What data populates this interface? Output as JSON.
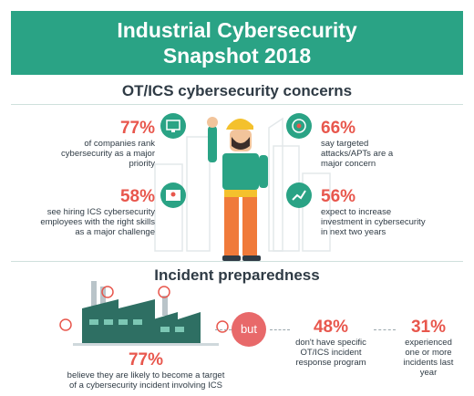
{
  "header": {
    "title_line1": "Industrial Cybersecurity",
    "title_line2": "Snapshot 2018"
  },
  "concerns": {
    "title": "OT/ICS cybersecurity concerns",
    "items": [
      {
        "pct": "77%",
        "text": [
          "of companies rank",
          "cybersecurity as a major",
          "priority"
        ],
        "icon": "monitor-shield-icon"
      },
      {
        "pct": "58%",
        "text": [
          "see hiring ICS cybersecurity",
          "employees with the right skills",
          "as a major challenge"
        ],
        "icon": "person-screen-icon"
      },
      {
        "pct": "66%",
        "text": [
          "say targeted",
          "attacks/APTs are a",
          "major concern"
        ],
        "icon": "target-icon"
      },
      {
        "pct": "56%",
        "text": [
          "expect to increase",
          "investment in cybersecurity",
          "in next two years"
        ],
        "icon": "chart-up-icon"
      }
    ]
  },
  "preparedness": {
    "title": "Incident preparedness",
    "left": {
      "pct": "77%",
      "text": [
        "believe they are likely to become a target",
        "of a cybersecurity incident involving ICS"
      ]
    },
    "but": "but",
    "middle": {
      "pct": "48%",
      "text": [
        "don't have specific",
        "OT/ICS incident",
        "response program"
      ]
    },
    "right": {
      "pct": "31%",
      "text": [
        "experienced",
        "one or more",
        "incidents last",
        "year"
      ]
    }
  },
  "colors": {
    "accent": "#2aa385",
    "highlight": "#e8574d",
    "text": "#2f3b45"
  }
}
